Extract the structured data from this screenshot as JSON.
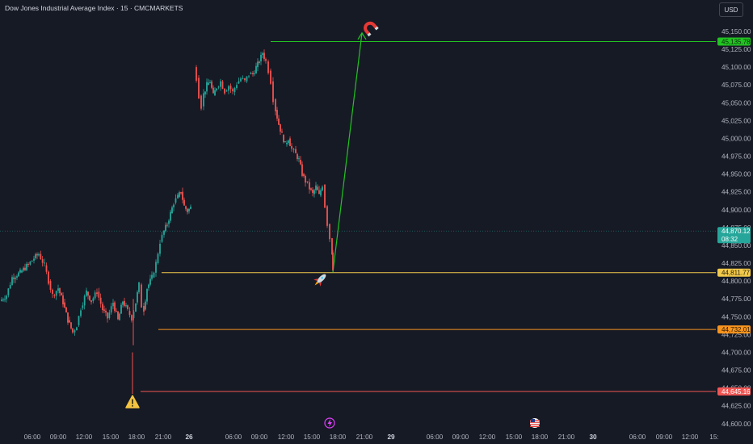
{
  "header": {
    "title": "Dow Jones Industrial Average Index · 15 · CMCMARKETS",
    "currency_button": "USD"
  },
  "colors": {
    "background": "#161a25",
    "bull": "#26a69a",
    "bear": "#ef5350",
    "target_line": "#22c322",
    "entry_line": "#f2c94c",
    "mid_line": "#f7941d",
    "low_line": "#f05654"
  },
  "chart_data": {
    "type": "candlestick",
    "title": "Dow Jones Industrial Average Index · 15 · CMCMARKETS",
    "ylim": [
      44600,
      45170
    ],
    "y_ticks": [
      "45,150.00",
      "45,125.00",
      "45,100.00",
      "45,075.00",
      "45,050.00",
      "45,025.00",
      "45,000.00",
      "44,975.00",
      "44,950.00",
      "44,925.00",
      "44,900.00",
      "44,875.00",
      "44,850.00",
      "44,825.00",
      "44,800.00",
      "44,775.00",
      "44,750.00",
      "44,725.00",
      "44,700.00",
      "44,675.00",
      "44,650.00",
      "44,625.00",
      "44,600.00"
    ],
    "x_ticks": [
      "06:00",
      "09:00",
      "12:00",
      "15:00",
      "18:00",
      "21:00",
      "26",
      "06:00",
      "09:00",
      "12:00",
      "15:00",
      "18:00",
      "21:00",
      "29",
      "06:00",
      "09:00",
      "12:00",
      "15:00",
      "18:00",
      "21:00",
      "30",
      "06:00",
      "09:00",
      "12:00",
      "15:"
    ],
    "price_labels": [
      {
        "name": "target",
        "value": 45135.78,
        "text": "45,135.78"
      },
      {
        "name": "current",
        "value": 44870.12,
        "text": "44,870.12",
        "countdown": "08:32"
      },
      {
        "name": "entry",
        "value": 44811.77,
        "text": "44,811.77"
      },
      {
        "name": "support",
        "value": 44732.01,
        "text": "44,732.01"
      },
      {
        "name": "low",
        "value": 44645.16,
        "text": "44,645.16"
      }
    ],
    "segments": [
      {
        "points": [
          [
            0,
            44772
          ],
          [
            8,
            44780
          ],
          [
            15,
            44805
          ],
          [
            25,
            44812
          ],
          [
            35,
            44823
          ],
          [
            42,
            44832
          ],
          [
            48,
            44838
          ],
          [
            55,
            44822
          ],
          [
            60,
            44800
          ],
          [
            65,
            44780
          ],
          [
            72,
            44790
          ],
          [
            78,
            44770
          ],
          [
            84,
            44745
          ],
          [
            90,
            44728
          ],
          [
            95,
            44738
          ],
          [
            100,
            44762
          ],
          [
            107,
            44785
          ],
          [
            113,
            44772
          ],
          [
            120,
            44785
          ],
          [
            127,
            44760
          ],
          [
            133,
            44748
          ],
          [
            140,
            44770
          ],
          [
            146,
            44745
          ],
          [
            152,
            44772
          ],
          [
            158,
            44758
          ],
          [
            163,
            44748
          ],
          [
            168,
            44770
          ],
          [
            172,
            44795
          ],
          [
            175,
            44765
          ],
          [
            178,
            44760
          ],
          [
            182,
            44790
          ],
          [
            188,
            44805
          ],
          [
            193,
            44825
          ],
          [
            198,
            44855
          ],
          [
            203,
            44870
          ],
          [
            207,
            44880
          ],
          [
            211,
            44895
          ],
          [
            215,
            44910
          ],
          [
            220,
            44918
          ],
          [
            224,
            44925
          ],
          [
            228,
            44905
          ],
          [
            232,
            44898
          ],
          [
            236,
            44903
          ]
        ]
      },
      {
        "points": [
          [
            240,
            45100
          ],
          [
            243,
            45085
          ],
          [
            246,
            45060
          ],
          [
            249,
            45045
          ],
          [
            252,
            45062
          ],
          [
            256,
            45075
          ],
          [
            260,
            45080
          ],
          [
            264,
            45060
          ],
          [
            268,
            45072
          ],
          [
            273,
            45080
          ],
          [
            278,
            45066
          ],
          [
            283,
            45074
          ],
          [
            288,
            45065
          ],
          [
            293,
            45077
          ],
          [
            298,
            45084
          ],
          [
            303,
            45080
          ],
          [
            308,
            45090
          ],
          [
            313,
            45090
          ],
          [
            317,
            45100
          ],
          [
            321,
            45108
          ],
          [
            325,
            45120
          ],
          [
            329,
            45108
          ],
          [
            332,
            45095
          ],
          [
            335,
            45080
          ],
          [
            338,
            45055
          ],
          [
            341,
            45040
          ],
          [
            345,
            45020
          ],
          [
            349,
            45005
          ],
          [
            353,
            44992
          ],
          [
            357,
            45000
          ],
          [
            361,
            44985
          ],
          [
            366,
            44978
          ],
          [
            370,
            44970
          ],
          [
            374,
            44950
          ],
          [
            378,
            44940
          ],
          [
            383,
            44930
          ],
          [
            387,
            44922
          ],
          [
            391,
            44932
          ],
          [
            395,
            44920
          ],
          [
            399,
            44935
          ],
          [
            402,
            44905
          ],
          [
            405,
            44880
          ],
          [
            408,
            44860
          ],
          [
            411,
            44840
          ],
          [
            412,
            44818
          ]
        ]
      }
    ],
    "lines": [
      {
        "name": "target",
        "value": 45135.78
      },
      {
        "name": "entry",
        "value": 44811.77
      },
      {
        "name": "support",
        "value": 44732.01
      },
      {
        "name": "low",
        "value": 44645.16
      }
    ],
    "projection_arrow": {
      "from": [
        412,
        44812
      ],
      "to": [
        448,
        45148
      ]
    }
  }
}
